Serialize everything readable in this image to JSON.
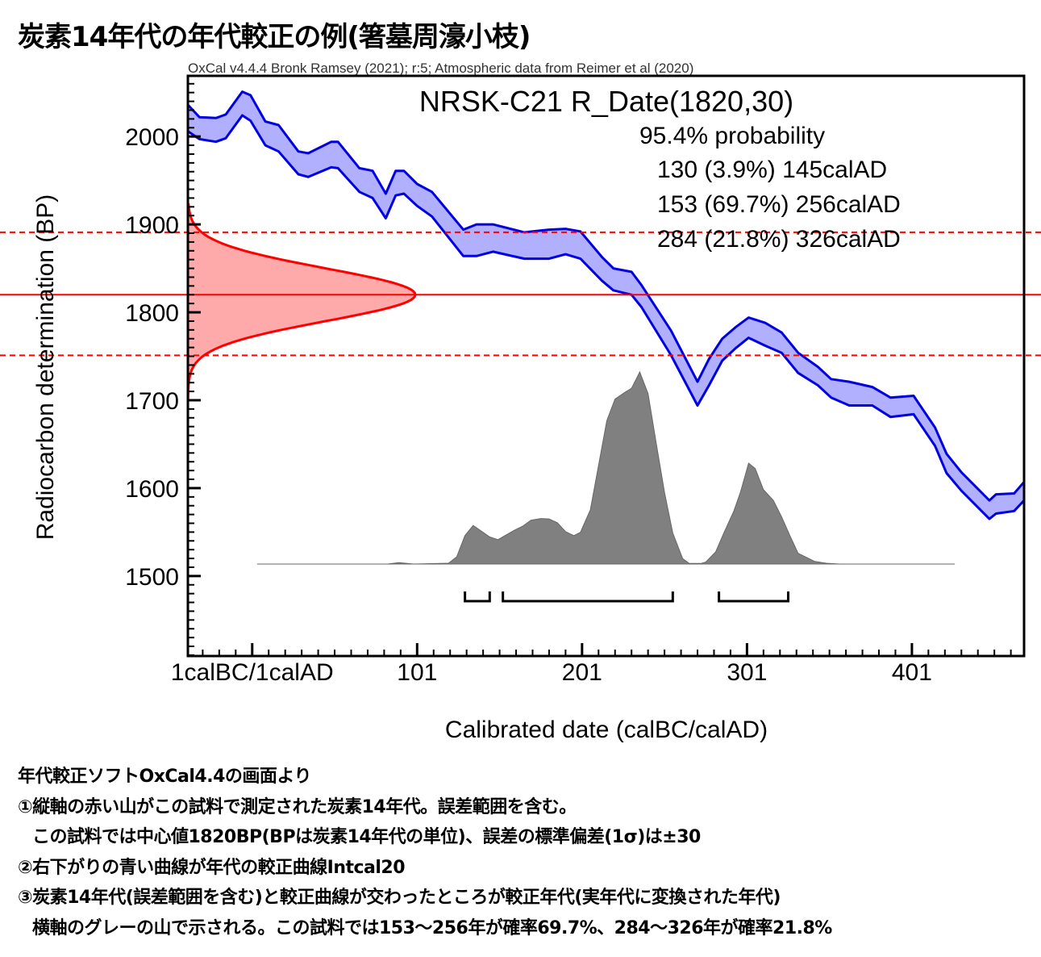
{
  "title": "炭素14年代の年代較正の例(箸墓周濠小枝)",
  "caption": [
    "年代較正ソフトOxCal4.4の画面より",
    "①縦軸の赤い山がこの試料で測定された炭素14年代。誤差範囲を含む。",
    "この試料では中心値1820BP(BPは炭素14年代の単位)、誤差の標準偏差(1σ)は±30",
    "②右下がりの青い曲線が年代の較正曲線Intcal20",
    "③炭素14年代(誤差範囲を含む)と較正曲線が交わったところが較正年代(実年代に変換された年代)",
    "横軸のグレーの山で示される。この試料では153～256年が確率69.7%、284～326年が確率21.8%"
  ],
  "chart_data": {
    "type": "area",
    "header": "OxCal v4.4.4 Bronk Ramsey (2021); r:5; Atmospheric data from Reimer et al (2020)",
    "title": "NRSK-C21 R_Date(1820,30)",
    "probability_heading": "95.4% probability",
    "probability_ranges": [
      {
        "label": "130 (3.9%) 145calAD",
        "from": 130,
        "to": 145,
        "percent": 3.9
      },
      {
        "label": "153 (69.7%) 256calAD",
        "from": 153,
        "to": 256,
        "percent": 69.7
      },
      {
        "label": "284 (21.8%) 326calAD",
        "from": 284,
        "to": 326,
        "percent": 21.8
      }
    ],
    "xlabel": "Calibrated date (calBC/calAD)",
    "ylabel": "Radiocarbon determination (BP)",
    "xlim": [
      -38,
      469
    ],
    "ylim": [
      1409,
      2069
    ],
    "x_ticks": [
      {
        "value": 1,
        "label": "1calBC/1calAD"
      },
      {
        "value": 101,
        "label": "101"
      },
      {
        "value": 201,
        "label": "201"
      },
      {
        "value": 301,
        "label": "301"
      },
      {
        "value": 401,
        "label": "401"
      }
    ],
    "y_ticks": [
      {
        "value": 2000,
        "label": "2000"
      },
      {
        "value": 1900,
        "label": "1900"
      },
      {
        "value": 1800,
        "label": "1800"
      },
      {
        "value": 1700,
        "label": "1700"
      },
      {
        "value": 1600,
        "label": "1600"
      },
      {
        "value": 1500,
        "label": "1500"
      }
    ],
    "radiocarbon_date": {
      "mean": 1820,
      "sigma": 30,
      "range_lines": [
        1751,
        1891
      ]
    },
    "calibration_curve": {
      "name": "IntCal20",
      "year": [
        -38,
        -31,
        -21,
        -15,
        -5,
        0,
        9,
        17,
        29,
        35,
        49,
        53,
        66,
        74,
        82,
        88,
        93,
        101,
        110,
        129,
        137,
        147,
        166,
        181,
        191,
        200,
        213,
        220,
        231,
        237,
        255,
        271,
        278,
        286,
        294,
        302,
        312,
        322,
        332,
        344,
        352,
        363,
        377,
        388,
        402,
        415,
        422,
        431,
        448,
        452,
        463,
        469
      ],
      "upper": [
        2036,
        2022,
        2021,
        2025,
        2051,
        2047,
        2017,
        2013,
        1983,
        1981,
        1994,
        1994,
        1964,
        1961,
        1935,
        1961,
        1961,
        1946,
        1937,
        1894,
        1900,
        1900,
        1891,
        1894,
        1895,
        1892,
        1863,
        1850,
        1846,
        1831,
        1779,
        1721,
        1747,
        1770,
        1783,
        1794,
        1788,
        1777,
        1754,
        1738,
        1724,
        1721,
        1715,
        1703,
        1705,
        1669,
        1639,
        1618,
        1586,
        1593,
        1594,
        1607
      ],
      "lower": [
        2006,
        1997,
        1994,
        1998,
        2024,
        2018,
        1990,
        1983,
        1957,
        1954,
        1965,
        1964,
        1937,
        1930,
        1907,
        1933,
        1935,
        1921,
        1909,
        1864,
        1864,
        1869,
        1861,
        1861,
        1866,
        1861,
        1836,
        1825,
        1820,
        1806,
        1751,
        1694,
        1717,
        1745,
        1759,
        1771,
        1762,
        1754,
        1731,
        1717,
        1703,
        1694,
        1694,
        1681,
        1684,
        1648,
        1617,
        1597,
        1565,
        1571,
        1574,
        1586
      ]
    },
    "posterior": {
      "year": [
        4,
        83,
        90,
        99,
        120,
        125,
        130,
        135,
        145,
        150,
        160,
        165,
        170,
        176,
        181,
        186,
        191,
        196,
        200,
        206,
        211,
        216,
        221,
        227,
        231,
        236,
        241,
        246,
        251,
        256,
        262,
        266,
        273,
        276,
        282,
        287,
        293,
        297,
        302,
        306,
        311,
        317,
        322,
        327,
        332,
        337,
        342,
        349,
        357,
        427
      ],
      "prob": [
        0,
        0,
        0.007,
        0,
        0.004,
        0.038,
        0.148,
        0.201,
        0.141,
        0.127,
        0.176,
        0.197,
        0.228,
        0.237,
        0.235,
        0.215,
        0.169,
        0.148,
        0.165,
        0.282,
        0.514,
        0.746,
        0.859,
        0.894,
        0.915,
        1.0,
        0.887,
        0.627,
        0.373,
        0.162,
        0.028,
        0.003,
        0.003,
        0.01,
        0.063,
        0.162,
        0.275,
        0.373,
        0.525,
        0.497,
        0.387,
        0.331,
        0.246,
        0.148,
        0.056,
        0.035,
        0.014,
        0.004,
        0,
        0
      ]
    },
    "colors": {
      "curve_fill": "#b0b0ff",
      "curve_line": "#0000e0",
      "date_fill": "#ffaaaa",
      "date_line": "#ff0000",
      "posterior_fill": "#808080"
    },
    "grid": false
  }
}
